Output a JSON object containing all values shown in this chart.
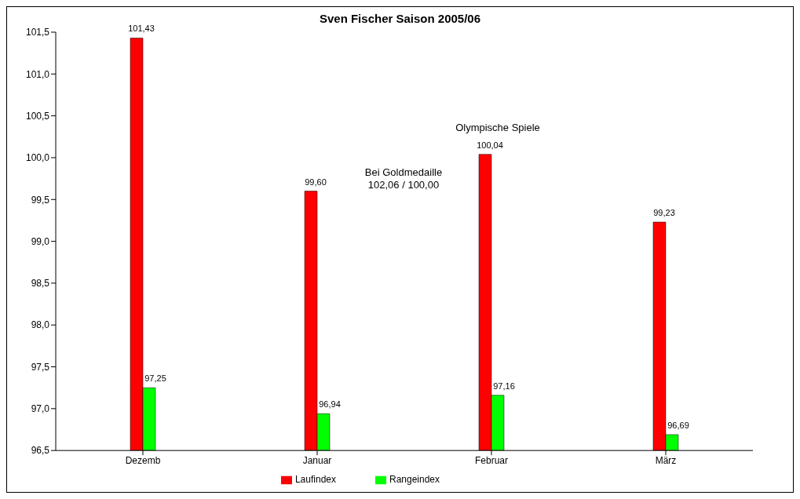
{
  "chart_data": {
    "type": "bar",
    "title": "Sven Fischer Saison 2005/06",
    "categories": [
      "Dezemb",
      "Januar",
      "Februar",
      "März"
    ],
    "series": [
      {
        "name": "Laufindex",
        "color": "#ff0000",
        "values": [
          101.43,
          99.6,
          100.04,
          99.23
        ],
        "value_labels": [
          "101,43",
          "99,60",
          "100,04",
          "99,23"
        ]
      },
      {
        "name": "Rangeindex",
        "color": "#00ff00",
        "values": [
          97.25,
          96.94,
          97.16,
          96.69
        ],
        "value_labels": [
          "97,25",
          "96,94",
          "97,16",
          "96,69"
        ]
      }
    ],
    "ylim": [
      96.5,
      101.5
    ],
    "yticks": [
      {
        "value": 96.5,
        "label": "96,5"
      },
      {
        "value": 97,
        "label": "97,0"
      },
      {
        "value": 97.5,
        "label": "97,5"
      },
      {
        "value": 98,
        "label": "98,0"
      },
      {
        "value": 98.5,
        "label": "98,5"
      },
      {
        "value": 99,
        "label": "99,0"
      },
      {
        "value": 99.5,
        "label": "99,5"
      },
      {
        "value": 100,
        "label": "100,0"
      },
      {
        "value": 100.5,
        "label": "100,5"
      },
      {
        "value": 101,
        "label": "101,0"
      },
      {
        "value": 101.5,
        "label": "101,5"
      }
    ],
    "annotations": [
      "Olympische Spiele",
      "Bei Goldmedaille\n102,06 / 100,00"
    ],
    "grid": false,
    "legend": "bottom"
  }
}
